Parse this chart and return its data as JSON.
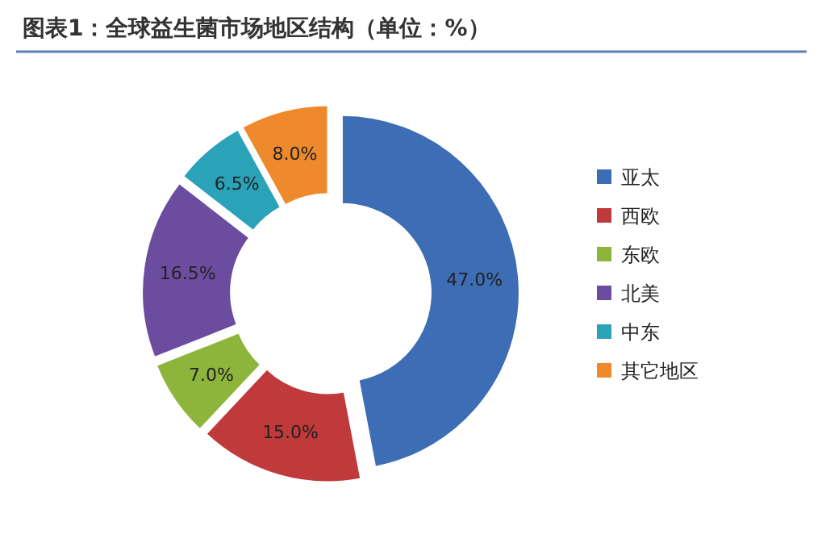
{
  "chart_data": {
    "type": "donut",
    "title": "图表1：全球益生菌市场地区结构（单位：%）",
    "categories": [
      "亚太",
      "西欧",
      "东欧",
      "北美",
      "中东",
      "其它地区"
    ],
    "values": [
      47.0,
      15.0,
      7.0,
      16.5,
      6.5,
      8.0
    ],
    "colors": [
      "#3d6db5",
      "#c0393b",
      "#8db53c",
      "#6b4c9e",
      "#2aa3b8",
      "#ee8a2c"
    ],
    "value_labels": [
      "47.0%",
      "15.0%",
      "7.0%",
      "16.5%",
      "6.5%",
      "8.0%"
    ],
    "legend": "right"
  }
}
